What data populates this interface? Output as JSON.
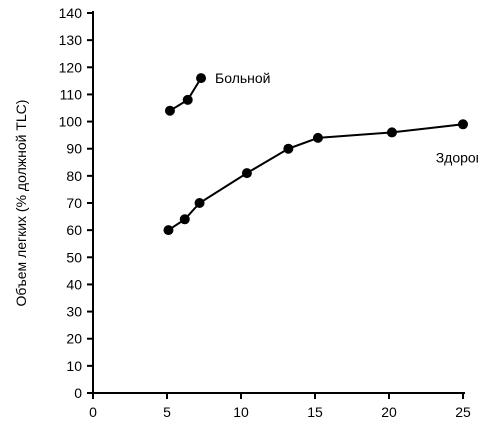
{
  "chart_data": {
    "type": "line",
    "title": "",
    "xlabel": "",
    "ylabel": "Объем легких (% должной TLC)",
    "xlim": [
      0,
      25
    ],
    "ylim": [
      0,
      140
    ],
    "xticks": [
      0,
      5,
      10,
      15,
      20,
      25
    ],
    "yticks": [
      0,
      10,
      20,
      30,
      40,
      50,
      60,
      70,
      80,
      90,
      100,
      110,
      120,
      130,
      140
    ],
    "grid": false,
    "legend": "none",
    "series": [
      {
        "name": "Больной",
        "x": [
          5.2,
          6.4,
          7.3
        ],
        "y": [
          104,
          108,
          116
        ]
      },
      {
        "name": "Здоровый",
        "x": [
          5.1,
          6.2,
          7.2,
          10.4,
          13.2,
          15.2,
          20.2,
          25.0
        ],
        "y": [
          60,
          64,
          70,
          81,
          90,
          94,
          96,
          99
        ]
      }
    ],
    "series_colors": [
      "#000000",
      "#000000"
    ]
  }
}
